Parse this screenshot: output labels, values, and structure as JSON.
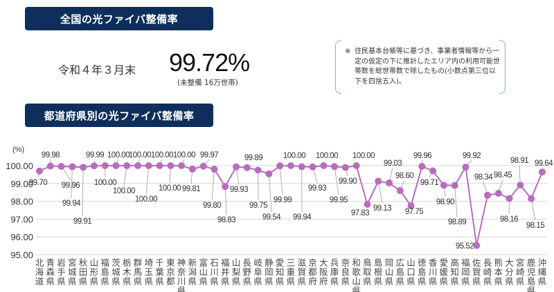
{
  "header1": "全国の光ファイバ整備率",
  "national": {
    "date": "令和４年３月末",
    "rate": "99.72%",
    "note": "(未整備 16万世帯)"
  },
  "footnote": {
    "mark": "※",
    "text": "住民基本台帳等に基づき、事業者情報等から一定の仮定の下に推計したエリア内の利用可能世帯数を総世帯数で除したもの(小数点第三位以下を四捨五入)。"
  },
  "header2": "都道府県別の光ファイバ整備率",
  "colors": {
    "header_bg": "#0e2f5c",
    "series": "#b96bbd",
    "bracket": "#6fb3e6"
  },
  "chart_data": {
    "type": "line",
    "title": "",
    "ylabel": "(%)",
    "ylim": [
      95,
      100
    ],
    "yticks": [
      "95.00",
      "96.00",
      "97.00",
      "98.00",
      "99.00",
      "100.00"
    ],
    "grid": true,
    "categories": [
      "北海道",
      "青森県",
      "岩手県",
      "宮城県",
      "秋田県",
      "山形県",
      "福島県",
      "茨城県",
      "栃木県",
      "群馬県",
      "埼玉県",
      "千葉県",
      "東京都",
      "神奈川県",
      "新潟県",
      "富山県",
      "石川県",
      "福井県",
      "山梨県",
      "長野県",
      "岐阜県",
      "静岡県",
      "愛知県",
      "三重県",
      "滋賀県",
      "京都府",
      "大阪府",
      "兵庫県",
      "奈良県",
      "和歌山県",
      "鳥取県",
      "島根県",
      "岡山県",
      "広島県",
      "山口県",
      "徳島県",
      "香川県",
      "愛媛県",
      "高知県",
      "福岡県",
      "佐賀県",
      "長崎県",
      "熊本県",
      "大分県",
      "宮崎県",
      "鹿児島県",
      "沖縄県"
    ],
    "values": [
      99.7,
      99.98,
      99.96,
      99.94,
      99.91,
      99.99,
      100.0,
      100.0,
      100.0,
      100.0,
      100.0,
      100.0,
      100.0,
      100.0,
      99.81,
      99.97,
      99.8,
      98.83,
      99.93,
      99.89,
      99.75,
      99.54,
      99.99,
      100.0,
      99.94,
      99.93,
      100.0,
      99.95,
      99.9,
      100.0,
      97.83,
      99.13,
      99.03,
      98.6,
      97.75,
      99.96,
      99.71,
      98.9,
      98.89,
      99.92,
      95.52,
      98.34,
      98.45,
      98.16,
      98.91,
      98.15,
      99.64
    ],
    "labels": [
      "99.70",
      "99.98",
      "99.96",
      "99.94",
      "99.91",
      "99.99",
      "100.00",
      "100.00",
      "100.00",
      "100.00",
      "100.00",
      "100.00",
      "100.00",
      "100.00",
      "99.81",
      "99.97",
      "99.80",
      "98.83",
      "99.93",
      "99.89",
      "99.75",
      "99.54",
      "99.99",
      "100.00",
      "99.94",
      "99.93",
      "100.00",
      "99.95",
      "99.90",
      "100.00",
      "97.83",
      "99.13",
      "99.03",
      "98.60",
      "97.75",
      "99.96",
      "99.71",
      "98.90",
      "98.89",
      "99.92",
      "95.52",
      "98.34",
      "98.45",
      "98.16",
      "98.91",
      "98.15",
      "99.64"
    ]
  }
}
